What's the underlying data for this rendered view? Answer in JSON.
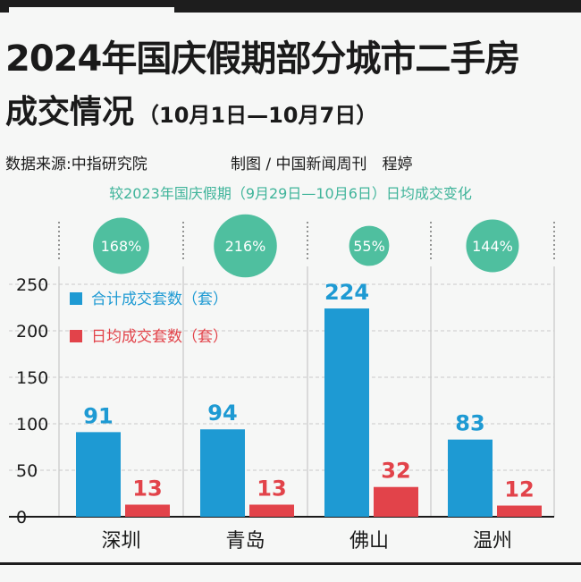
{
  "header": {
    "title_line1": "2024年国庆假期部分城市二手房",
    "title_line2": "成交情况",
    "title_sub": "（10月1日—10月7日）",
    "source": "数据来源:中指研究院",
    "credit": "制图 / 中国新闻周刊　程婷",
    "compare_note": "较2023年国庆假期（9月29日—10月6日）日均成交变化"
  },
  "colors": {
    "total": "#1e9ad3",
    "daily": "#e2434a",
    "change": "#4fbf9f",
    "change_text": "#3fb49a"
  },
  "chart_data": {
    "type": "bar",
    "categories": [
      "深圳",
      "青岛",
      "佛山",
      "温州"
    ],
    "series": [
      {
        "name": "合计成交套数（套）",
        "values": [
          91,
          94,
          224,
          83
        ]
      },
      {
        "name": "日均成交套数（套）",
        "values": [
          13,
          13,
          32,
          12
        ]
      }
    ],
    "change_labels": [
      "168%",
      "216%",
      "55%",
      "144%"
    ],
    "change_values": [
      168,
      216,
      55,
      144
    ],
    "yticks": [
      "250",
      "200",
      "150",
      "100",
      "50",
      "0"
    ],
    "ylim": [
      0,
      250
    ],
    "legend_position": "top-left",
    "grid": true
  }
}
